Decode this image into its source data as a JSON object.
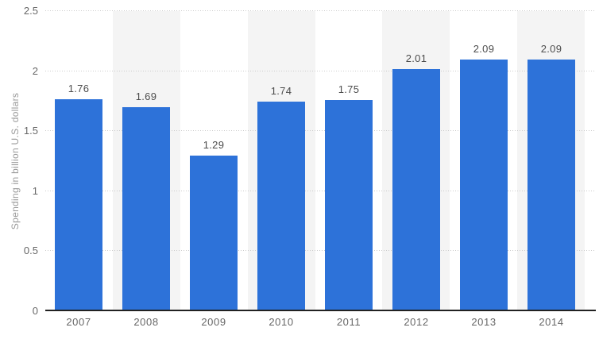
{
  "chart_data": {
    "type": "bar",
    "title": "",
    "categories": [
      "2007",
      "2008",
      "2009",
      "2010",
      "2011",
      "2012",
      "2013",
      "2014"
    ],
    "values": [
      1.76,
      1.69,
      1.29,
      1.74,
      1.75,
      2.01,
      2.09,
      2.09
    ],
    "value_labels": [
      "1.76",
      "1.69",
      "1.29",
      "1.74",
      "1.75",
      "2.01",
      "2.09",
      "2.09"
    ],
    "xlabel": "",
    "ylabel": "Spending in billion U.S. dollars",
    "ylim": [
      0,
      2.5
    ],
    "yticks": [
      0,
      0.5,
      1,
      1.5,
      2,
      2.5
    ],
    "ytick_labels": [
      "0",
      "0.5",
      "1",
      "1.5",
      "2",
      "2.5"
    ],
    "grid": "horizontal-dotted",
    "legend": "none",
    "annotations": "value labels above each bar",
    "layout": "alternating light-gray vertical bands behind every second category column"
  },
  "colors": {
    "bar": "#2d72d9",
    "band": "#f4f4f4",
    "gridline": "#cccccc",
    "axis_line": "#222222",
    "tick_label": "#666666",
    "value_label": "#4c4c4c",
    "y_title": "#999999",
    "background": "#ffffff"
  }
}
